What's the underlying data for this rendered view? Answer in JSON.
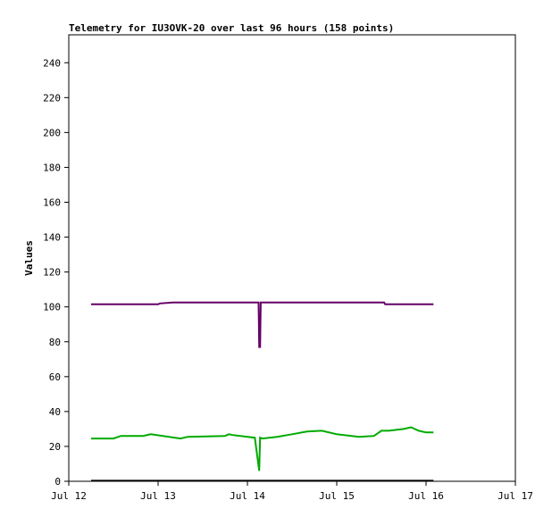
{
  "chart_data": {
    "type": "line",
    "title": "Telemetry for IU3OVK-20 over last 96 hours (158 points)",
    "xlabel": "",
    "ylabel": "Values",
    "xlim": [
      "Jul 12 00:00",
      "Jul 17 00:00"
    ],
    "ylim": [
      0,
      256
    ],
    "x_ticks": [
      "Jul 12",
      "Jul 13",
      "Jul 14",
      "Jul 15",
      "Jul 16",
      "Jul 17"
    ],
    "y_ticks": [
      0,
      20,
      40,
      60,
      80,
      100,
      120,
      140,
      160,
      180,
      200,
      220,
      240
    ],
    "grid": false,
    "legend": "none",
    "series": [
      {
        "color": "#660066",
        "x": [
          "Jul 12 06:00",
          "Jul 13 00:00",
          "Jul 13 00:30",
          "Jul 13 04:00",
          "Jul 14 03:00",
          "Jul 14 03:10",
          "Jul 14 03:25",
          "Jul 14 03:35",
          "Jul 15 12:45",
          "Jul 15 13:00",
          "Jul 16 02:00"
        ],
        "y": [
          101.5,
          101.5,
          102,
          102.5,
          102.5,
          77,
          77,
          102.5,
          102.5,
          101.5,
          101.5
        ]
      },
      {
        "color": "#00aa00",
        "x": [
          "Jul 12 06:00",
          "Jul 12 12:00",
          "Jul 12 14:00",
          "Jul 12 20:00",
          "Jul 12 22:00",
          "Jul 13 06:00",
          "Jul 13 08:00",
          "Jul 13 18:00",
          "Jul 13 19:00",
          "Jul 13 20:00",
          "Jul 14 02:00",
          "Jul 14 03:10",
          "Jul 14 03:25",
          "Jul 14 04:00",
          "Jul 14 08:00",
          "Jul 14 12:00",
          "Jul 14 16:00",
          "Jul 14 20:00",
          "Jul 15 00:00",
          "Jul 15 06:00",
          "Jul 15 10:00",
          "Jul 15 12:00",
          "Jul 15 14:00",
          "Jul 15 18:00",
          "Jul 15 20:00",
          "Jul 15 22:00",
          "Jul 16 00:00",
          "Jul 16 02:00"
        ],
        "y": [
          24.5,
          24.5,
          26,
          26,
          27,
          24.5,
          25.5,
          26,
          27,
          26.5,
          25,
          6,
          25,
          24.5,
          25.5,
          27,
          28.5,
          29,
          27,
          25.5,
          26,
          29,
          29,
          30,
          31,
          29,
          28,
          28
        ]
      },
      {
        "color": "#000000",
        "x": [
          "Jul 12 06:00",
          "Jul 16 02:00"
        ],
        "y": [
          0.3,
          0.3
        ]
      }
    ]
  }
}
